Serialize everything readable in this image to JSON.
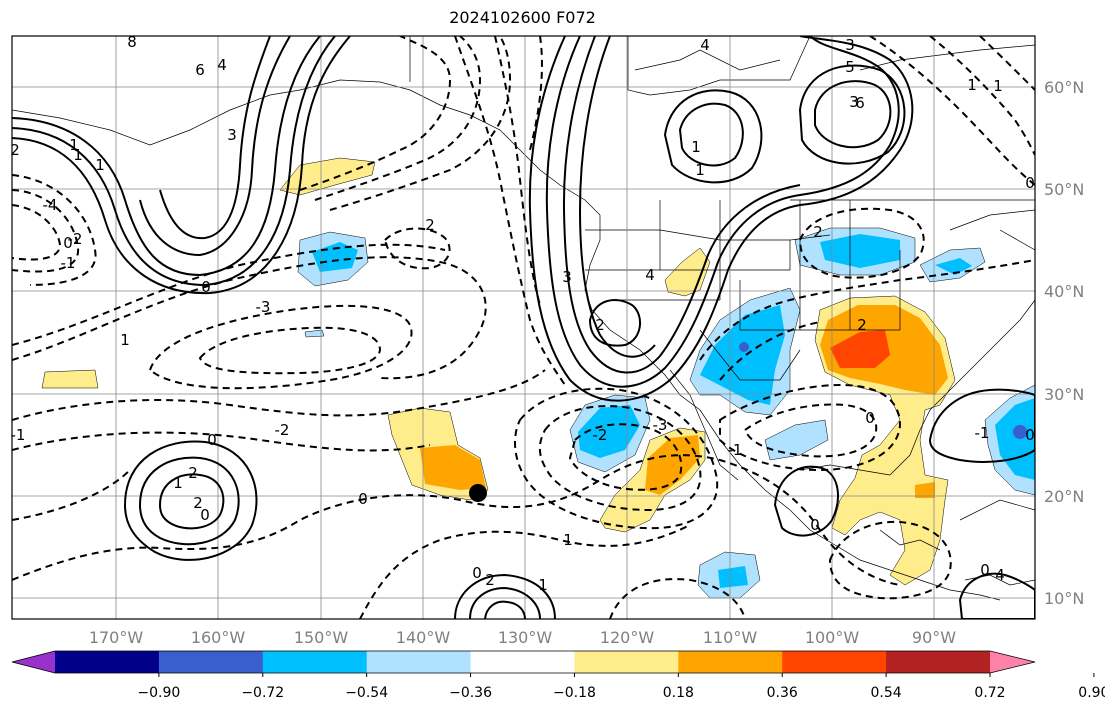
{
  "title": "2024102600 F072",
  "map": {
    "lon_labels": [
      "170°W",
      "160°W",
      "150°W",
      "140°W",
      "130°W",
      "120°W",
      "110°W",
      "100°W",
      "90°W"
    ],
    "lat_labels": [
      "60°N",
      "50°N",
      "40°N",
      "30°N",
      "20°N",
      "10°N"
    ],
    "contour_labels": [
      "8",
      "6",
      "4",
      "3",
      "1",
      "1",
      "2",
      "1",
      "0",
      "3",
      "2",
      "4",
      "4",
      "3",
      "5",
      "6",
      "1",
      "1",
      "2",
      "1",
      "-2",
      "-1",
      "-4",
      "0",
      "-3",
      "1",
      "-1",
      "0",
      "-2",
      "0",
      "0",
      "-3",
      "-2",
      "-1",
      "1",
      "2",
      "2",
      "0",
      "0",
      "2",
      "1",
      "2",
      "0",
      "2",
      "-1",
      "4",
      "3",
      "1",
      "1",
      "0",
      "0",
      "0"
    ],
    "marker": "black-dot"
  },
  "colorbar": {
    "tick_labels": [
      "−0.90",
      "−0.72",
      "−0.54",
      "−0.36",
      "−0.18",
      "0.18",
      "0.36",
      "0.54",
      "0.72",
      "0.90"
    ],
    "colors": [
      "#9932cc",
      "#00008b",
      "#3a5fcd",
      "#00bfff",
      "#b0e2ff",
      "#ffffff",
      "#ffec8b",
      "#ffa500",
      "#ff4500",
      "#b22222",
      "#ff82ab"
    ]
  }
}
